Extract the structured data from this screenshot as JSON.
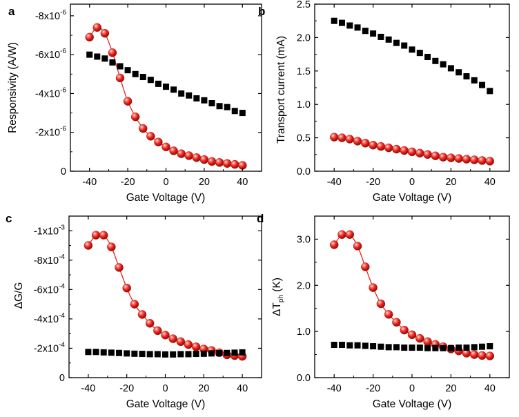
{
  "figure": {
    "colors": {
      "series_circle": "#e8231b",
      "series_square": "#000000",
      "axis": "#000000"
    },
    "icons": {
      "circle_marker": "red-sphere-marker",
      "square_marker": "black-square-marker"
    }
  },
  "chart_data": [
    {
      "panel": "a",
      "type": "line",
      "xlabel": "Gate Voltage (V)",
      "ylabel": "Responsivity (A/W)",
      "xlim": [
        -50,
        50
      ],
      "ylim": [
        0,
        -8.6e-06
      ],
      "xticks": [
        -40,
        -20,
        0,
        20,
        40
      ],
      "xtick_labels": [
        "-40",
        "-20",
        "0",
        "20",
        "40"
      ],
      "yticks": [
        0,
        -2e-06,
        -4e-06,
        -6e-06,
        -8e-06
      ],
      "ytick_labels": [
        {
          "m": "0",
          "e": ""
        },
        {
          "m": "-2x10",
          "e": "-6"
        },
        {
          "m": "-4x10",
          "e": "-6"
        },
        {
          "m": "-6x10",
          "e": "-6"
        },
        {
          "m": "-8x10",
          "e": "-6"
        }
      ],
      "series": [
        {
          "name": "circles",
          "marker": "circle",
          "color": "#e8231b",
          "fit_line": true,
          "x": [
            -40,
            -36,
            -32,
            -28,
            -24,
            -20,
            -16,
            -12,
            -8,
            -4,
            0,
            4,
            8,
            12,
            16,
            20,
            24,
            28,
            32,
            36,
            40
          ],
          "y": [
            -6.9e-06,
            -7.4e-06,
            -7.1e-06,
            -6.1e-06,
            -4.8e-06,
            -3.6e-06,
            -2.8e-06,
            -2.2e-06,
            -1.8e-06,
            -1.5e-06,
            -1.25e-06,
            -1.05e-06,
            -9e-07,
            -8e-07,
            -7e-07,
            -6e-07,
            -5e-07,
            -4.5e-07,
            -4e-07,
            -3.5e-07,
            -3e-07
          ]
        },
        {
          "name": "squares",
          "marker": "square",
          "color": "#000000",
          "fit_line": false,
          "x": [
            -40,
            -36,
            -32,
            -28,
            -24,
            -20,
            -16,
            -12,
            -8,
            -4,
            0,
            4,
            8,
            12,
            16,
            20,
            24,
            28,
            32,
            36,
            40
          ],
          "y": [
            -6e-06,
            -5.9e-06,
            -5.8e-06,
            -5.6e-06,
            -5.4e-06,
            -5.2e-06,
            -5e-06,
            -4.85e-06,
            -4.7e-06,
            -4.5e-06,
            -4.35e-06,
            -4.2e-06,
            -4e-06,
            -3.9e-06,
            -3.75e-06,
            -3.65e-06,
            -3.5e-06,
            -3.35e-06,
            -3.3e-06,
            -3.1e-06,
            -3e-06
          ]
        }
      ]
    },
    {
      "panel": "b",
      "type": "line",
      "xlabel": "Gate Voltage (V)",
      "ylabel": "Transport current (mA)",
      "xlim": [
        -50,
        50
      ],
      "ylim": [
        0,
        2.5
      ],
      "xticks": [
        -40,
        -20,
        0,
        20,
        40
      ],
      "xtick_labels": [
        "-40",
        "-20",
        "0",
        "20",
        "40"
      ],
      "yticks": [
        0,
        0.5,
        1.0,
        1.5,
        2.0,
        2.5
      ],
      "ytick_labels": [
        {
          "m": "0.0",
          "e": ""
        },
        {
          "m": "0.5",
          "e": ""
        },
        {
          "m": "1.0",
          "e": ""
        },
        {
          "m": "1.5",
          "e": ""
        },
        {
          "m": "2.0",
          "e": ""
        },
        {
          "m": "2.5",
          "e": ""
        }
      ],
      "series": [
        {
          "name": "squares",
          "marker": "square",
          "color": "#000000",
          "fit_line": false,
          "x": [
            -40,
            -36,
            -32,
            -28,
            -24,
            -20,
            -16,
            -12,
            -8,
            -4,
            0,
            4,
            8,
            12,
            16,
            20,
            24,
            28,
            32,
            36,
            40
          ],
          "y": [
            2.25,
            2.22,
            2.18,
            2.15,
            2.1,
            2.06,
            2.01,
            1.97,
            1.92,
            1.88,
            1.82,
            1.77,
            1.71,
            1.65,
            1.6,
            1.54,
            1.48,
            1.42,
            1.36,
            1.29,
            1.2
          ]
        },
        {
          "name": "circles",
          "marker": "circle",
          "color": "#e8231b",
          "fit_line": false,
          "x": [
            -40,
            -36,
            -32,
            -28,
            -24,
            -20,
            -16,
            -12,
            -8,
            -4,
            0,
            4,
            8,
            12,
            16,
            20,
            24,
            28,
            32,
            36,
            40
          ],
          "y": [
            0.51,
            0.5,
            0.48,
            0.45,
            0.42,
            0.39,
            0.37,
            0.35,
            0.33,
            0.31,
            0.29,
            0.27,
            0.25,
            0.23,
            0.21,
            0.2,
            0.19,
            0.18,
            0.17,
            0.16,
            0.15
          ]
        }
      ]
    },
    {
      "panel": "c",
      "type": "line",
      "xlabel": "Gate Voltage (V)",
      "ylabel": "ΔG/G",
      "xlim": [
        -50,
        50
      ],
      "ylim": [
        0,
        -0.0011
      ],
      "xticks": [
        -40,
        -20,
        0,
        20,
        40
      ],
      "xtick_labels": [
        "-40",
        "-20",
        "0",
        "20",
        "40"
      ],
      "yticks": [
        0,
        -0.0002,
        -0.0004,
        -0.0006,
        -0.0008,
        -0.001
      ],
      "ytick_labels": [
        {
          "m": "0",
          "e": ""
        },
        {
          "m": "-2x10",
          "e": "-4"
        },
        {
          "m": "-4x10",
          "e": "-4"
        },
        {
          "m": "-6x10",
          "e": "-4"
        },
        {
          "m": "-8x10",
          "e": "-4"
        },
        {
          "m": "-1x10",
          "e": "-3"
        }
      ],
      "series": [
        {
          "name": "circles",
          "marker": "circle",
          "color": "#e8231b",
          "fit_line": true,
          "x": [
            -40,
            -36,
            -32,
            -28,
            -24,
            -20,
            -16,
            -12,
            -8,
            -4,
            0,
            4,
            8,
            12,
            16,
            20,
            24,
            28,
            32,
            36,
            40
          ],
          "y": [
            -0.0009,
            -0.00097,
            -0.00097,
            -0.00089,
            -0.00075,
            -0.00061,
            -0.0005,
            -0.00043,
            -0.00037,
            -0.00032,
            -0.00029,
            -0.000265,
            -0.000245,
            -0.000225,
            -0.00021,
            -0.000195,
            -0.000185,
            -0.00017,
            -0.000155,
            -0.00015,
            -0.000145
          ]
        },
        {
          "name": "squares",
          "marker": "square",
          "color": "#000000",
          "fit_line": false,
          "x": [
            -40,
            -36,
            -32,
            -28,
            -24,
            -20,
            -16,
            -12,
            -8,
            -4,
            0,
            4,
            8,
            12,
            16,
            20,
            24,
            28,
            32,
            36,
            40
          ],
          "y": [
            -0.000175,
            -0.000175,
            -0.000172,
            -0.00017,
            -0.000168,
            -0.000165,
            -0.000163,
            -0.000162,
            -0.00016,
            -0.00016,
            -0.000158,
            -0.000158,
            -0.00016,
            -0.00016,
            -0.000162,
            -0.000163,
            -0.000165,
            -0.000167,
            -0.000168,
            -0.00017,
            -0.000172
          ]
        }
      ]
    },
    {
      "panel": "d",
      "type": "line",
      "xlabel": "Gate Voltage (V)",
      "ylabel": "ΔT",
      "ylabel_sub": "ph",
      "ylabel_unit": " (K)",
      "xlim": [
        -50,
        50
      ],
      "ylim": [
        0,
        3.5
      ],
      "xticks": [
        -40,
        -20,
        0,
        20,
        40
      ],
      "xtick_labels": [
        "-40",
        "-20",
        "0",
        "20",
        "40"
      ],
      "yticks": [
        0,
        1.0,
        2.0,
        3.0
      ],
      "ytick_labels": [
        {
          "m": "0.0",
          "e": ""
        },
        {
          "m": "1.0",
          "e": ""
        },
        {
          "m": "2.0",
          "e": ""
        },
        {
          "m": "3.0",
          "e": ""
        }
      ],
      "series": [
        {
          "name": "circles",
          "marker": "circle",
          "color": "#e8231b",
          "fit_line": true,
          "x": [
            -40,
            -36,
            -32,
            -28,
            -24,
            -20,
            -16,
            -12,
            -8,
            -4,
            0,
            4,
            8,
            12,
            16,
            20,
            24,
            28,
            32,
            36,
            40
          ],
          "y": [
            2.88,
            3.1,
            3.1,
            2.85,
            2.4,
            1.95,
            1.6,
            1.37,
            1.2,
            1.03,
            0.93,
            0.85,
            0.78,
            0.72,
            0.67,
            0.62,
            0.58,
            0.53,
            0.5,
            0.48,
            0.47
          ]
        },
        {
          "name": "squares",
          "marker": "square",
          "color": "#000000",
          "fit_line": false,
          "x": [
            -40,
            -36,
            -32,
            -28,
            -24,
            -20,
            -16,
            -12,
            -8,
            -4,
            0,
            4,
            8,
            12,
            16,
            20,
            24,
            28,
            32,
            36,
            40
          ],
          "y": [
            0.71,
            0.71,
            0.7,
            0.7,
            0.69,
            0.68,
            0.67,
            0.66,
            0.66,
            0.65,
            0.65,
            0.65,
            0.64,
            0.64,
            0.64,
            0.64,
            0.65,
            0.65,
            0.66,
            0.67,
            0.68
          ]
        }
      ]
    }
  ]
}
